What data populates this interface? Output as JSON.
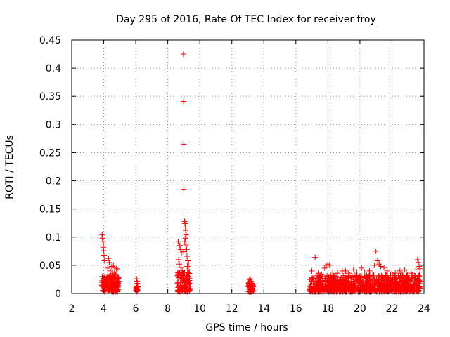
{
  "chart_data": {
    "type": "scatter",
    "title": "Day 295 of 2016, Rate Of TEC Index for receiver froy",
    "xlabel": "GPS time / hours",
    "ylabel": "ROTI / TECUs",
    "xlim": [
      2,
      24
    ],
    "ylim": [
      0,
      0.45
    ],
    "x_ticks": [
      2,
      4,
      6,
      8,
      10,
      12,
      14,
      16,
      18,
      20,
      22,
      24
    ],
    "x_tick_labels": [
      "2",
      "4",
      "6",
      "8",
      "10",
      "12",
      "14",
      "16",
      "18",
      "20",
      "22",
      "24"
    ],
    "y_ticks": [
      0,
      0.05,
      0.1,
      0.15,
      0.2,
      0.25,
      0.3,
      0.35,
      0.4,
      0.45
    ],
    "y_tick_labels": [
      "0",
      "0.05",
      "0.1",
      "0.15",
      "0.2",
      "0.25",
      "0.3",
      "0.35",
      "0.4",
      "0.45"
    ],
    "grid": true,
    "marker": "+",
    "color": "#ff0000",
    "series": [
      {
        "name": "ROTI",
        "points": [
          [
            3.9,
            0.104
          ],
          [
            3.92,
            0.098
          ],
          [
            3.95,
            0.092
          ],
          [
            3.97,
            0.082
          ],
          [
            4.0,
            0.076
          ],
          [
            4.02,
            0.068
          ],
          [
            4.05,
            0.058
          ],
          [
            3.98,
            0.088
          ],
          [
            4.3,
            0.062
          ],
          [
            4.35,
            0.055
          ],
          [
            4.25,
            0.045
          ],
          [
            4.5,
            0.048
          ],
          [
            4.6,
            0.05
          ],
          [
            4.7,
            0.046
          ],
          [
            4.8,
            0.044
          ],
          [
            4.85,
            0.042
          ],
          [
            4.4,
            0.04
          ],
          [
            4.55,
            0.038
          ],
          [
            4.65,
            0.036
          ],
          [
            4.75,
            0.034
          ],
          [
            4.45,
            0.032
          ],
          [
            4.2,
            0.03
          ],
          [
            6.05,
            0.026
          ],
          [
            6.08,
            0.022
          ],
          [
            6.1,
            0.018
          ],
          [
            6.12,
            0.012
          ],
          [
            8.65,
            0.092
          ],
          [
            8.7,
            0.088
          ],
          [
            8.75,
            0.085
          ],
          [
            8.8,
            0.078
          ],
          [
            8.85,
            0.072
          ],
          [
            8.68,
            0.06
          ],
          [
            8.72,
            0.052
          ],
          [
            8.82,
            0.046
          ],
          [
            8.9,
            0.04
          ],
          [
            8.98,
            0.425
          ],
          [
            8.99,
            0.341
          ],
          [
            9.0,
            0.265
          ],
          [
            9.0,
            0.185
          ],
          [
            9.05,
            0.128
          ],
          [
            9.08,
            0.124
          ],
          [
            9.1,
            0.118
          ],
          [
            9.12,
            0.112
          ],
          [
            9.15,
            0.104
          ],
          [
            9.1,
            0.098
          ],
          [
            9.06,
            0.092
          ],
          [
            9.14,
            0.086
          ],
          [
            9.18,
            0.078
          ],
          [
            9.0,
            0.074
          ],
          [
            9.2,
            0.066
          ],
          [
            9.25,
            0.058
          ],
          [
            9.3,
            0.054
          ],
          [
            9.22,
            0.048
          ],
          [
            9.28,
            0.042
          ],
          [
            9.35,
            0.038
          ],
          [
            13.05,
            0.02
          ],
          [
            13.1,
            0.024
          ],
          [
            13.15,
            0.026
          ],
          [
            13.2,
            0.022
          ],
          [
            13.25,
            0.018
          ],
          [
            17.2,
            0.064
          ],
          [
            17.0,
            0.04
          ],
          [
            17.4,
            0.036
          ],
          [
            17.6,
            0.034
          ],
          [
            17.8,
            0.045
          ],
          [
            17.9,
            0.05
          ],
          [
            18.0,
            0.052
          ],
          [
            18.1,
            0.05
          ],
          [
            18.3,
            0.038
          ],
          [
            18.6,
            0.036
          ],
          [
            18.9,
            0.04
          ],
          [
            19.1,
            0.04
          ],
          [
            19.3,
            0.036
          ],
          [
            19.6,
            0.042
          ],
          [
            19.8,
            0.038
          ],
          [
            20.1,
            0.045
          ],
          [
            20.3,
            0.038
          ],
          [
            20.6,
            0.04
          ],
          [
            20.9,
            0.05
          ],
          [
            21.0,
            0.075
          ],
          [
            21.1,
            0.058
          ],
          [
            21.2,
            0.052
          ],
          [
            21.3,
            0.048
          ],
          [
            21.5,
            0.046
          ],
          [
            21.7,
            0.04
          ],
          [
            22.0,
            0.038
          ],
          [
            22.2,
            0.036
          ],
          [
            22.5,
            0.04
          ],
          [
            22.8,
            0.042
          ],
          [
            22.9,
            0.038
          ],
          [
            23.2,
            0.036
          ],
          [
            23.5,
            0.042
          ],
          [
            23.6,
            0.06
          ],
          [
            23.65,
            0.055
          ],
          [
            23.7,
            0.048
          ],
          [
            23.75,
            0.044
          ]
        ]
      }
    ],
    "dense_bands": [
      {
        "x_range": [
          3.85,
          4.95
        ],
        "y_max": 0.03
      },
      {
        "x_range": [
          6.0,
          6.15
        ],
        "y_max": 0.01
      },
      {
        "x_range": [
          8.6,
          9.4
        ],
        "y_max": 0.035
      },
      {
        "x_range": [
          13.0,
          13.35
        ],
        "y_max": 0.016
      },
      {
        "x_range": [
          16.85,
          23.8
        ],
        "y_max": 0.03
      }
    ]
  }
}
